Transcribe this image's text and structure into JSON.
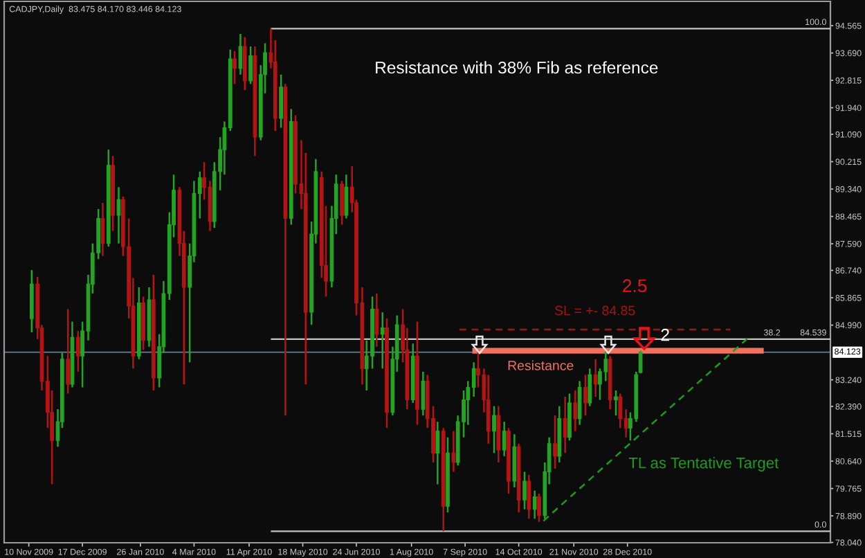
{
  "chart_data": {
    "type": "candlestick",
    "title": "CADJPY,Daily  83.475 84.170 83.446 84.123",
    "subtitle": "Resistance with 38% Fib as reference",
    "x": [
      "2009-11-12",
      "2009-11-16",
      "2009-11-19",
      "2009-11-23",
      "2009-11-26",
      "2009-11-30",
      "2009-12-03",
      "2009-12-07",
      "2009-12-10",
      "2009-12-14",
      "2009-12-17",
      "2009-12-21",
      "2009-12-24",
      "2009-12-28",
      "2009-12-31",
      "2010-01-04",
      "2010-01-07",
      "2010-01-11",
      "2010-01-14",
      "2010-01-18",
      "2010-01-21",
      "2010-01-25",
      "2010-01-28",
      "2010-02-01",
      "2010-02-04",
      "2010-02-08",
      "2010-02-11",
      "2010-02-15",
      "2010-02-18",
      "2010-02-22",
      "2010-02-25",
      "2010-03-01",
      "2010-03-04",
      "2010-03-08",
      "2010-03-11",
      "2010-03-15",
      "2010-03-18",
      "2010-03-22",
      "2010-03-25",
      "2010-03-29",
      "2010-04-01",
      "2010-04-05",
      "2010-04-08",
      "2010-04-12",
      "2010-04-15",
      "2010-04-19",
      "2010-04-22",
      "2010-04-26",
      "2010-04-29",
      "2010-05-03",
      "2010-05-06",
      "2010-05-10",
      "2010-05-13",
      "2010-05-17",
      "2010-05-20",
      "2010-05-24",
      "2010-05-27",
      "2010-05-31",
      "2010-06-03",
      "2010-06-07",
      "2010-06-10",
      "2010-06-14",
      "2010-06-17",
      "2010-06-21",
      "2010-06-24",
      "2010-06-28",
      "2010-07-01",
      "2010-07-05",
      "2010-07-08",
      "2010-07-12",
      "2010-07-15",
      "2010-07-19",
      "2010-07-22",
      "2010-07-26",
      "2010-07-29",
      "2010-08-02",
      "2010-08-05",
      "2010-08-09",
      "2010-08-12",
      "2010-08-16",
      "2010-08-19",
      "2010-08-23",
      "2010-08-26",
      "2010-08-30",
      "2010-09-02",
      "2010-09-06",
      "2010-09-09",
      "2010-09-13",
      "2010-09-16",
      "2010-09-20",
      "2010-09-23",
      "2010-09-27",
      "2010-09-30",
      "2010-10-04",
      "2010-10-07",
      "2010-10-11",
      "2010-10-14",
      "2010-10-18",
      "2010-10-21",
      "2010-10-25",
      "2010-10-28",
      "2010-11-01",
      "2010-11-04",
      "2010-11-08",
      "2010-11-11",
      "2010-11-15",
      "2010-11-18",
      "2010-11-22",
      "2010-11-25",
      "2010-11-29",
      "2010-12-02",
      "2010-12-06",
      "2010-12-09",
      "2010-12-13",
      "2010-12-16",
      "2010-12-20",
      "2010-12-23",
      "2010-12-27",
      "2010-12-30",
      "2011-01-03",
      "2011-01-06"
    ],
    "ohlc": [
      [
        85.2,
        86.75,
        84.76,
        86.3
      ],
      [
        86.3,
        86.53,
        84.54,
        84.9
      ],
      [
        84.9,
        85.0,
        82.9,
        83.2
      ],
      [
        83.2,
        84.0,
        81.7,
        82.2
      ],
      [
        82.2,
        82.9,
        79.9,
        81.3
      ],
      [
        81.3,
        82.3,
        81.1,
        81.9
      ],
      [
        81.9,
        84.1,
        81.7,
        83.9
      ],
      [
        83.9,
        85.5,
        82.8,
        83.1
      ],
      [
        83.1,
        85.1,
        83.0,
        84.6
      ],
      [
        84.6,
        84.8,
        83.5,
        84.0
      ],
      [
        84.0,
        85.1,
        83.0,
        84.8
      ],
      [
        84.8,
        86.6,
        84.5,
        86.3
      ],
      [
        86.3,
        87.6,
        86.0,
        87.3
      ],
      [
        87.3,
        88.7,
        87.1,
        88.4
      ],
      [
        88.4,
        88.9,
        87.2,
        87.6
      ],
      [
        87.6,
        90.6,
        87.5,
        90.1
      ],
      [
        90.1,
        90.4,
        88.0,
        88.5
      ],
      [
        88.5,
        89.4,
        87.6,
        89.0
      ],
      [
        89.0,
        89.1,
        87.2,
        87.5
      ],
      [
        87.5,
        88.4,
        85.2,
        85.6
      ],
      [
        85.6,
        86.5,
        83.6,
        84.0
      ],
      [
        84.0,
        86.2,
        83.9,
        85.7
      ],
      [
        85.7,
        85.9,
        84.2,
        84.5
      ],
      [
        84.5,
        86.2,
        84.3,
        85.8
      ],
      [
        85.8,
        86.6,
        82.9,
        83.3
      ],
      [
        83.3,
        84.7,
        83.0,
        84.3
      ],
      [
        84.3,
        86.4,
        84.1,
        86.0
      ],
      [
        86.0,
        88.6,
        85.8,
        88.2
      ],
      [
        88.2,
        89.8,
        87.8,
        89.3
      ],
      [
        89.3,
        89.4,
        87.2,
        87.6
      ],
      [
        87.6,
        88.0,
        83.1,
        86.2
      ],
      [
        86.2,
        87.6,
        83.8,
        87.2
      ],
      [
        87.2,
        89.6,
        87.0,
        89.2
      ],
      [
        89.2,
        89.9,
        88.4,
        89.7
      ],
      [
        89.7,
        90.2,
        89.0,
        89.4
      ],
      [
        89.4,
        89.6,
        88.0,
        88.3
      ],
      [
        88.3,
        90.2,
        88.1,
        89.9
      ],
      [
        89.9,
        91.0,
        89.3,
        90.6
      ],
      [
        90.6,
        91.5,
        89.8,
        91.3
      ],
      [
        91.3,
        93.8,
        91.2,
        93.5
      ],
      [
        93.5,
        93.75,
        92.7,
        93.2
      ],
      [
        93.2,
        94.3,
        93.0,
        93.9
      ],
      [
        93.9,
        94.2,
        92.5,
        92.8
      ],
      [
        92.8,
        93.9,
        92.7,
        93.6
      ],
      [
        93.6,
        93.9,
        90.4,
        91.0
      ],
      [
        91.0,
        93.3,
        90.9,
        93.0
      ],
      [
        93.0,
        94.0,
        92.4,
        93.7
      ],
      [
        93.7,
        94.47,
        93.2,
        93.4
      ],
      [
        93.4,
        94.1,
        91.2,
        91.6
      ],
      [
        91.6,
        93.0,
        91.3,
        92.6
      ],
      [
        92.6,
        92.7,
        82.1,
        88.4
      ],
      [
        88.4,
        91.9,
        88.2,
        91.5
      ],
      [
        91.5,
        91.7,
        89.2,
        89.5
      ],
      [
        89.5,
        90.9,
        88.7,
        89.2
      ],
      [
        89.2,
        90.5,
        83.1,
        85.4
      ],
      [
        85.4,
        88.3,
        85.0,
        87.9
      ],
      [
        87.9,
        90.3,
        87.6,
        89.9
      ],
      [
        89.7,
        89.9,
        86.5,
        86.9
      ],
      [
        86.9,
        88.8,
        85.9,
        86.4
      ],
      [
        86.4,
        88.8,
        86.2,
        88.4
      ],
      [
        88.4,
        89.8,
        87.9,
        89.5
      ],
      [
        89.5,
        89.6,
        88.2,
        88.5
      ],
      [
        88.5,
        89.8,
        88.4,
        89.4
      ],
      [
        89.4,
        90.07,
        88.6,
        88.9
      ],
      [
        88.9,
        89.0,
        85.3,
        85.7
      ],
      [
        85.7,
        86.2,
        83.1,
        83.6
      ],
      [
        83.6,
        84.5,
        82.9,
        84.0
      ],
      [
        84.0,
        85.9,
        83.6,
        85.5
      ],
      [
        85.5,
        86.0,
        84.3,
        84.7
      ],
      [
        84.7,
        85.4,
        83.6,
        84.9
      ],
      [
        84.9,
        85.2,
        81.7,
        82.2
      ],
      [
        82.2,
        84.3,
        82.1,
        83.9
      ],
      [
        83.9,
        85.3,
        83.5,
        85.0
      ],
      [
        85.0,
        85.5,
        83.8,
        84.2
      ],
      [
        84.2,
        84.9,
        82.3,
        82.6
      ],
      [
        82.6,
        84.4,
        82.5,
        84.0
      ],
      [
        84.0,
        85.1,
        81.8,
        82.3
      ],
      [
        82.3,
        83.5,
        82.1,
        83.2
      ],
      [
        83.2,
        83.4,
        81.7,
        82.0
      ],
      [
        82.0,
        82.4,
        80.6,
        80.9
      ],
      [
        80.9,
        81.9,
        79.9,
        81.6
      ],
      [
        81.6,
        81.7,
        78.4,
        79.2
      ],
      [
        79.2,
        81.4,
        79.0,
        80.9
      ],
      [
        80.9,
        81.6,
        80.3,
        80.6
      ],
      [
        80.6,
        82.1,
        80.5,
        81.9
      ],
      [
        81.9,
        82.9,
        81.4,
        82.6
      ],
      [
        82.6,
        83.2,
        81.8,
        83.0
      ],
      [
        83.0,
        83.8,
        82.7,
        83.6
      ],
      [
        83.6,
        84.17,
        83.0,
        83.4
      ],
      [
        83.4,
        83.6,
        82.2,
        82.6
      ],
      [
        82.6,
        83.4,
        81.2,
        81.6
      ],
      [
        81.6,
        82.4,
        80.9,
        82.1
      ],
      [
        82.1,
        82.4,
        80.6,
        81.0
      ],
      [
        81.0,
        81.9,
        80.8,
        81.6
      ],
      [
        81.6,
        81.7,
        79.6,
        80.0
      ],
      [
        80.0,
        81.5,
        79.8,
        81.1
      ],
      [
        81.1,
        81.2,
        79.0,
        79.4
      ],
      [
        79.4,
        80.3,
        79.1,
        80.0
      ],
      [
        80.0,
        80.2,
        78.8,
        79.1
      ],
      [
        79.1,
        79.7,
        78.8,
        79.5
      ],
      [
        79.5,
        79.6,
        78.7,
        78.9
      ],
      [
        78.9,
        80.6,
        78.8,
        80.3
      ],
      [
        80.3,
        81.4,
        79.9,
        81.2
      ],
      [
        81.2,
        82.1,
        80.4,
        80.8
      ],
      [
        80.8,
        82.4,
        80.6,
        82.0
      ],
      [
        82.0,
        82.7,
        80.9,
        81.4
      ],
      [
        81.4,
        82.8,
        81.3,
        82.5
      ],
      [
        82.5,
        82.9,
        81.6,
        82.0
      ],
      [
        82.0,
        83.2,
        81.8,
        83.0
      ],
      [
        83.0,
        83.4,
        82.1,
        82.5
      ],
      [
        82.5,
        83.6,
        82.4,
        83.4
      ],
      [
        83.4,
        83.9,
        82.7,
        83.1
      ],
      [
        83.1,
        83.6,
        82.6,
        83.5
      ],
      [
        83.5,
        84.17,
        83.2,
        83.9
      ],
      [
        83.9,
        84.0,
        82.3,
        82.6
      ],
      [
        82.6,
        82.9,
        82.1,
        82.7
      ],
      [
        82.7,
        82.8,
        81.7,
        82.0
      ],
      [
        82.0,
        82.3,
        81.4,
        81.7
      ],
      [
        81.7,
        82.2,
        81.3,
        82.0
      ],
      [
        82.0,
        83.5,
        81.9,
        83.4
      ],
      [
        83.475,
        84.17,
        83.446,
        84.123
      ]
    ],
    "colors": [
      "#23a523",
      "#b41414",
      "#b41414",
      "#b41414",
      "#b41414",
      "#23a523",
      "#23a523",
      "#b41414",
      "#23a523",
      "#b41414",
      "#23a523",
      "#23a523",
      "#23a523",
      "#23a523",
      "#b41414",
      "#23a523",
      "#b41414",
      "#23a523",
      "#b41414",
      "#b41414",
      "#b41414",
      "#23a523",
      "#b41414",
      "#23a523",
      "#b41414",
      "#23a523",
      "#23a523",
      "#23a523",
      "#23a523",
      "#b41414",
      "#b41414",
      "#23a523",
      "#23a523",
      "#23a523",
      "#b41414",
      "#b41414",
      "#23a523",
      "#23a523",
      "#23a523",
      "#23a523",
      "#b41414",
      "#23a523",
      "#b41414",
      "#23a523",
      "#b41414",
      "#23a523",
      "#23a523",
      "#b41414",
      "#b41414",
      "#23a523",
      "#b41414",
      "#23a523",
      "#b41414",
      "#b41414",
      "#b41414",
      "#23a523",
      "#23a523",
      "#b41414",
      "#b41414",
      "#23a523",
      "#23a523",
      "#b41414",
      "#23a523",
      "#b41414",
      "#b41414",
      "#b41414",
      "#23a523",
      "#23a523",
      "#b41414",
      "#23a523",
      "#b41414",
      "#23a523",
      "#23a523",
      "#b41414",
      "#b41414",
      "#23a523",
      "#b41414",
      "#23a523",
      "#b41414",
      "#b41414",
      "#23a523",
      "#b41414",
      "#23a523",
      "#b41414",
      "#23a523",
      "#23a523",
      "#23a523",
      "#23a523",
      "#b41414",
      "#b41414",
      "#b41414",
      "#23a523",
      "#b41414",
      "#23a523",
      "#b41414",
      "#23a523",
      "#b41414",
      "#23a523",
      "#b41414",
      "#23a523",
      "#b41414",
      "#23a523",
      "#23a523",
      "#b41414",
      "#23a523",
      "#b41414",
      "#23a523",
      "#b41414",
      "#23a523",
      "#b41414",
      "#23a523",
      "#b41414",
      "#23a523",
      "#23a523",
      "#b41414",
      "#23a523",
      "#b41414",
      "#b41414",
      "#23a523",
      "#23a523",
      "#23a523"
    ],
    "series": [
      {
        "type": "line",
        "name": "100.0",
        "x": [
          "2010-04-26",
          "2011-05-17"
        ],
        "values": [
          94.47,
          94.47
        ],
        "color": "#c4c4c4"
      },
      {
        "type": "line",
        "name": "38.2",
        "x": [
          "2010-04-26",
          "2011-05-17"
        ],
        "values": [
          84.539,
          84.539
        ],
        "value_labels": [
          null,
          "84.539"
        ],
        "color": "#c4c4c4"
      },
      {
        "type": "line",
        "name": "0.0",
        "x": [
          "2010-04-26",
          "2011-05-17"
        ],
        "values": [
          78.4,
          78.4
        ],
        "color": "#c4c4c4"
      },
      {
        "type": "line",
        "name": "SL = +- 84.85",
        "x": [
          "2010-09-03",
          "2011-03-09"
        ],
        "values": [
          84.85,
          84.85
        ],
        "color": "#a01414",
        "line_style": "dashed"
      },
      {
        "type": "line",
        "name": "Resistance",
        "x": [
          "2010-09-12",
          "2011-04-01"
        ],
        "values": [
          84.17,
          84.17
        ],
        "color": "#f2705e"
      },
      {
        "type": "line",
        "name": "TL as Tentative Target",
        "x": [
          "2010-10-31",
          "2011-03-21"
        ],
        "values": [
          78.73,
          84.57
        ],
        "color": "#1c9c1c",
        "line_style": "dashed"
      }
    ],
    "ref_lines": [
      {
        "axis": "y",
        "value": 84.123,
        "label": "84.123",
        "color": "#5a7384"
      }
    ],
    "annotations": [
      "2.5",
      {
        "text": "2",
        "x": "2011-01-23",
        "y": 84.63
      }
    ],
    "xlim": [
      "2009-10-24",
      "2011-05-17"
    ],
    "xticks": [
      {
        "value": "2009-11-10",
        "label": "10 Nov 2009"
      },
      {
        "value": "2009-12-17",
        "label": "17 Dec 2009"
      },
      {
        "value": "2010-01-26",
        "label": "26 Jan 2010"
      },
      {
        "value": "2010-03-04",
        "label": "4 Mar 2010"
      },
      {
        "value": "2010-04-11",
        "label": "11 Apr 2010"
      },
      {
        "value": "2010-05-18",
        "label": "18 May 2010"
      },
      {
        "value": "2010-06-24",
        "label": "24 Jun 2010"
      },
      {
        "value": "2010-08-01",
        "label": "1 Aug 2010"
      },
      {
        "value": "2010-09-07",
        "label": "7 Sep 2010"
      },
      {
        "value": "2010-10-14",
        "label": "14 Oct 2010"
      },
      {
        "value": "2010-11-21",
        "label": "21 Nov 2010"
      },
      {
        "value": "2010-12-28",
        "label": "28 Dec 2010"
      }
    ],
    "ylim": [
      78.03,
      95.34
    ],
    "yticks": [
      94.565,
      {
        "value": 93.69,
        "label": "93.690"
      },
      92.815,
      {
        "value": 91.94,
        "label": "91.940"
      },
      {
        "value": 91.09,
        "label": "91.090"
      },
      90.215,
      {
        "value": 89.34,
        "label": "89.340"
      },
      88.465,
      {
        "value": 87.59,
        "label": "87.590"
      },
      {
        "value": 86.74,
        "label": "86.740"
      },
      85.865,
      {
        "value": 84.99,
        "label": "84.990"
      },
      {
        "value": 83.24,
        "label": "83.240"
      },
      {
        "value": 82.39,
        "label": "82.390"
      },
      81.515,
      {
        "value": 80.64,
        "label": "80.640"
      },
      79.765,
      {
        "value": 78.89,
        "label": "78.890"
      },
      {
        "value": 78.04,
        "label": "78.040"
      }
    ],
    "grid": false
  }
}
